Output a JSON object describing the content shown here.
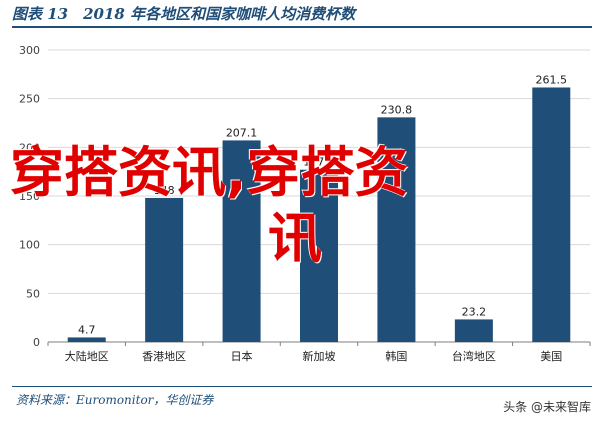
{
  "figure": {
    "title": "图表 13　2018 年各地区和国家咖啡人均消费杯数",
    "source": "资料来源：Euromonitor，华创证券"
  },
  "watermark": {
    "line1": "穿搭资讯,穿搭资",
    "line2": "讯"
  },
  "credit": "头条 @未来智库",
  "colors": {
    "bar": "#1f4e79",
    "grid": "#d9d9d9",
    "axis": "#7f7f7f"
  },
  "chart_data": {
    "type": "bar",
    "categories": [
      "大陆地区",
      "香港地区",
      "日本",
      "新加坡",
      "韩国",
      "台湾地区",
      "美国"
    ],
    "values": [
      4.7,
      148,
      207.1,
      177.0,
      230.8,
      23.2,
      261.5
    ],
    "value_labels": [
      "4.7",
      "148",
      "207.1",
      "177.0",
      "230.8",
      "23.2",
      "261.5"
    ],
    "yticks": [
      "0",
      "50",
      "100",
      "150",
      "200",
      "250",
      "300"
    ],
    "ylim": [
      0,
      300
    ],
    "grid": true,
    "legend": "none"
  }
}
